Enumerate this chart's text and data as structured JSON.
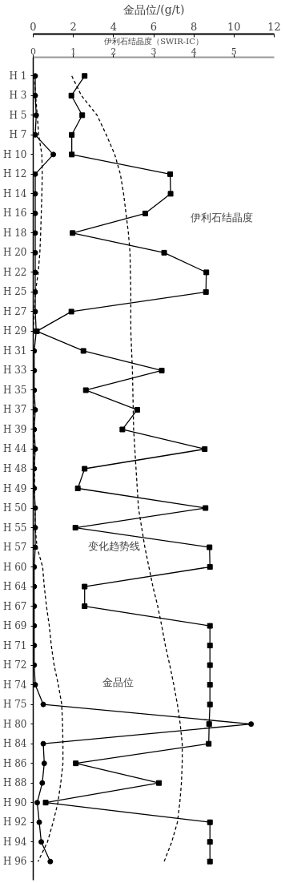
{
  "chart_data": {
    "type": "line",
    "orientation": "horizontal",
    "xlabel": "金品位/(g/t)",
    "x2label": "伊利石结晶度（SWIR-IC）",
    "categories": [
      "H 1",
      "H 3",
      "H 5",
      "H 7",
      "H 10",
      "H 12",
      "H 14",
      "H 16",
      "H 18",
      "H 20",
      "H 22",
      "H 25",
      "H 27",
      "H 29",
      "H 31",
      "H 33",
      "H 35",
      "H 37",
      "H 39",
      "H 44",
      "H 48",
      "H 49",
      "H 50",
      "H 55",
      "H 57",
      "H 60",
      "H 64",
      "H 67",
      "H 69",
      "H 71",
      "H 72",
      "H 74",
      "H 75",
      "H 80",
      "H 84",
      "H 86",
      "H 88",
      "H 90",
      "H 92",
      "H 94",
      "H 96"
    ],
    "xlim": [
      0,
      12
    ],
    "xticks": [
      0,
      2,
      4,
      6,
      8,
      10,
      12
    ],
    "x2lim": [
      0,
      6
    ],
    "x2ticks": [
      0,
      1,
      2,
      3,
      4,
      5
    ],
    "grid": false,
    "series": [
      {
        "color": "#000000",
        "marker": "circle",
        "line_style": "solid",
        "values": [
          0.1,
          0.1,
          0.15,
          0.1,
          1.0,
          0.1,
          0.1,
          0.1,
          0.1,
          0.1,
          0.1,
          0.1,
          0.1,
          0.15,
          0.05,
          0.05,
          0.05,
          0.1,
          0.05,
          0.1,
          0.05,
          0.05,
          0.1,
          0.1,
          0.1,
          0.05,
          0.05,
          0.05,
          0.05,
          0.05,
          0.05,
          0.1,
          0.5,
          10.85,
          0.5,
          0.55,
          0.45,
          0.2,
          0.3,
          0.4,
          0.85
        ]
      },
      {
        "color": "#000000",
        "marker": "square",
        "line_style": "solid",
        "axis": "x2",
        "values": [
          1.28,
          0.95,
          1.22,
          0.96,
          0.96,
          3.41,
          3.42,
          2.79,
          0.98,
          3.26,
          4.31,
          4.3,
          0.95,
          0.09,
          1.25,
          3.2,
          1.31,
          2.59,
          2.22,
          4.27,
          1.28,
          1.11,
          4.29,
          1.05,
          4.39,
          4.4,
          1.28,
          1.28,
          4.4,
          4.4,
          4.4,
          4.4,
          4.4,
          4.38,
          4.37,
          1.06,
          3.13,
          0.31,
          4.4,
          4.4,
          4.4
        ]
      },
      {
        "color": "#000000",
        "marker": "none",
        "line_style": "dashed",
        "values": [
          0.05,
          0.12,
          0.2,
          0.27,
          0.43,
          0.45,
          0.43,
          0.4,
          0.37,
          0.33,
          0.25,
          0.11,
          0.05,
          0,
          0,
          0,
          0,
          0.02,
          0.03,
          0.05,
          0.06,
          0.07,
          0.08,
          0.1,
          0.19,
          0.47,
          0.55,
          0.66,
          0.8,
          0.9,
          1.04,
          1.25,
          1.42,
          1.46,
          1.48,
          1.48,
          1.37,
          1.23,
          0.99,
          0.71,
          0.24
        ]
      },
      {
        "color": "#000000",
        "marker": "none",
        "line_style": "dashed",
        "axis": "x2",
        "values": [
          0.96,
          1.2,
          1.59,
          1.82,
          2.03,
          2.17,
          2.25,
          2.31,
          2.37,
          2.41,
          2.42,
          2.43,
          2.43,
          2.43,
          2.45,
          2.47,
          2.48,
          2.49,
          2.5,
          2.53,
          2.56,
          2.59,
          2.62,
          2.7,
          2.78,
          2.88,
          2.98,
          3.1,
          3.2,
          3.29,
          3.4,
          3.5,
          3.59,
          3.66,
          3.71,
          3.71,
          3.69,
          3.65,
          3.59,
          3.45,
          3.26
        ]
      }
    ],
    "annotations": [
      "伊利石结晶度",
      "变化趋势线",
      "金品位"
    ]
  }
}
